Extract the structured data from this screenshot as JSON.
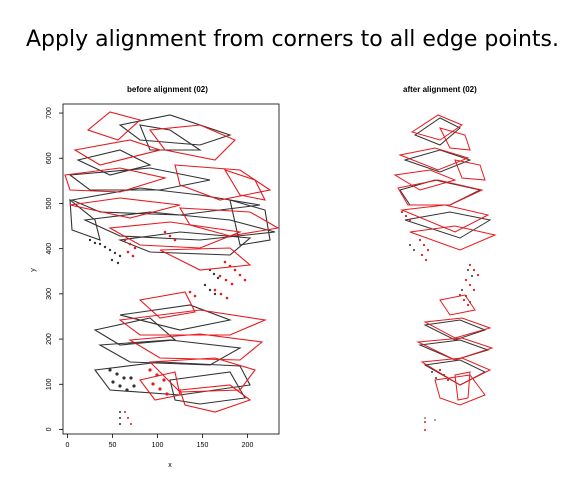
{
  "slide": {
    "heading": "Apply alignment from corners to all edge points."
  },
  "colors": {
    "before_series": "#333333",
    "after_series": "#e8191e"
  },
  "chart_data": [
    {
      "type": "scatter",
      "title": "before alignment (02)",
      "xlabel": "x",
      "ylabel": "y",
      "xlim": [
        -5,
        235
      ],
      "ylim": [
        -10,
        720
      ],
      "xticks": [
        0,
        50,
        100,
        150,
        200
      ],
      "yticks": [
        0,
        100,
        200,
        300,
        400,
        500,
        600,
        700
      ],
      "axes": true,
      "grid": false,
      "series": [
        {
          "color": "#333333",
          "description_points": [
            [
              10,
              560
            ],
            [
              40,
              650
            ],
            [
              90,
              690
            ],
            [
              160,
              700
            ],
            [
              210,
              650
            ],
            [
              235,
              560
            ],
            [
              230,
              470
            ],
            [
              200,
              400
            ],
            [
              180,
              320
            ],
            [
              130,
              260
            ],
            [
              90,
              230
            ],
            [
              60,
              200
            ],
            [
              50,
              100
            ],
            [
              80,
              40
            ],
            [
              150,
              40
            ],
            [
              200,
              80
            ],
            [
              215,
              150
            ],
            [
              210,
              220
            ],
            [
              190,
              280
            ]
          ]
        },
        {
          "color": "#e8191e",
          "description_points": [
            [
              5,
              510
            ],
            [
              20,
              600
            ],
            [
              60,
              680
            ],
            [
              120,
              700
            ],
            [
              190,
              680
            ],
            [
              225,
              600
            ],
            [
              235,
              500
            ],
            [
              215,
              430
            ],
            [
              180,
              370
            ],
            [
              170,
              300
            ],
            [
              140,
              250
            ],
            [
              110,
              220
            ],
            [
              80,
              180
            ],
            [
              70,
              120
            ],
            [
              90,
              60
            ],
            [
              150,
              30
            ],
            [
              205,
              70
            ],
            [
              220,
              140
            ],
            [
              205,
              210
            ]
          ]
        }
      ]
    },
    {
      "type": "scatter",
      "title": "after alignment (02)",
      "axes": false,
      "series": [
        {
          "color": "#333333"
        },
        {
          "color": "#e8191e"
        }
      ]
    }
  ]
}
